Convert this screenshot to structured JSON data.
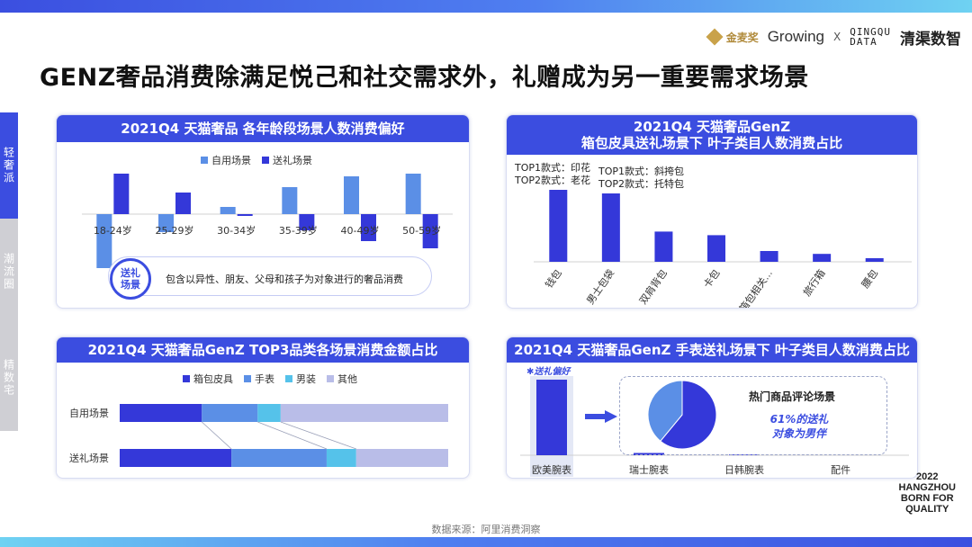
{
  "header": {
    "logos": {
      "jinmai": "金麦奖",
      "growing": "Growing",
      "x": "X",
      "qq_en_top": "QINGQU",
      "qq_en_bottom": "DATA",
      "qq_cn": "清渠数智"
    },
    "title": "GENZ奢品消费除满足悦己和社交需求外，礼赠成为另一重要需求场景"
  },
  "sidenav": {
    "items": [
      {
        "label": "轻奢派",
        "active": true
      },
      {
        "label": "潮流圈",
        "active": false
      },
      {
        "label": "精数宅",
        "active": false
      }
    ]
  },
  "colors": {
    "primary": "#3b4de0",
    "self_use": "#5b8fe6",
    "gift": "#3438d9",
    "watch": "#5b8fe6",
    "clothing": "#55c2ea",
    "other": "#b9bde8"
  },
  "panel1": {
    "title": "2021Q4 天猫奢品 各年龄段场景人数消费偏好",
    "callout": {
      "circle": "送礼\n场景",
      "text": "包含以异性、朋友、父母和孩子为对象进行的奢品消费"
    }
  },
  "panel2": {
    "title_line1": "2021Q4 天猫奢品GenZ",
    "title_line2": "箱包皮具送礼场景下 叶子类目人数消费占比",
    "annot_left": [
      "TOP1款式：印花",
      "TOP2款式：老花"
    ],
    "annot_right": [
      "TOP1款式：斜挎包",
      "TOP2款式：托特包"
    ]
  },
  "panel3": {
    "title": "2021Q4 天猫奢品GenZ TOP3品类各场景消费金额占比"
  },
  "panel4": {
    "title": "2021Q4 天猫奢品GenZ 手表送礼场景下 叶子类目人数消费占比",
    "tag": "✱送礼偏好",
    "pie_title": "热门商品评论场景",
    "pie_note": "61%的送礼\n对象为男伴"
  },
  "footer": {
    "source": "数据来源：阿里消费洞察",
    "tagline": [
      "2022",
      "HANGZHOU",
      "BORN FOR",
      "QUALITY"
    ]
  },
  "chart_data": [
    {
      "type": "bar",
      "title": "2021Q4 天猫奢品 各年龄段场景人数消费偏好",
      "categories": [
        "18-24岁",
        "25-29岁",
        "30-34岁",
        "35-39岁",
        "40-49岁",
        "50-59岁"
      ],
      "series": [
        {
          "name": "自用场景",
          "values": [
            -60,
            -20,
            8,
            30,
            42,
            45
          ]
        },
        {
          "name": "送礼场景",
          "values": [
            45,
            24,
            -2,
            -18,
            -30,
            -38
          ]
        }
      ],
      "ylim": [
        -62,
        62
      ],
      "legend": "top-center"
    },
    {
      "type": "bar",
      "title": "箱包皮具送礼场景下 叶子类目人数消费占比",
      "categories": [
        "钱包",
        "男士包袋",
        "双肩背包",
        "卡包",
        "箱包相关...",
        "旅行箱",
        "腰包"
      ],
      "values": [
        100,
        95,
        42,
        37,
        15,
        11,
        5
      ],
      "ylim": [
        0,
        110
      ]
    },
    {
      "type": "bar",
      "stacked": true,
      "orientation": "horizontal",
      "title": "2021Q4 天猫奢品GenZ TOP3品类各场景消费金额占比",
      "categories": [
        "自用场景",
        "送礼场景"
      ],
      "series": [
        {
          "name": "箱包皮具",
          "values": [
            25,
            34
          ]
        },
        {
          "name": "手表",
          "values": [
            17,
            29
          ]
        },
        {
          "name": "男装",
          "values": [
            7,
            9
          ]
        },
        {
          "name": "其他",
          "values": [
            51,
            28
          ]
        }
      ],
      "legend": "top-center"
    },
    {
      "type": "bar",
      "title": "2021Q4 天猫奢品GenZ 手表送礼场景下 叶子类目人数消费占比",
      "categories": [
        "欧美腕表",
        "瑞士腕表",
        "日韩腕表",
        "配件"
      ],
      "values": [
        100,
        3,
        1,
        0
      ],
      "ylim": [
        0,
        100
      ]
    },
    {
      "type": "pie",
      "title": "热门商品评论场景",
      "labels": [
        "男伴",
        "其他"
      ],
      "values": [
        61,
        39
      ]
    }
  ]
}
